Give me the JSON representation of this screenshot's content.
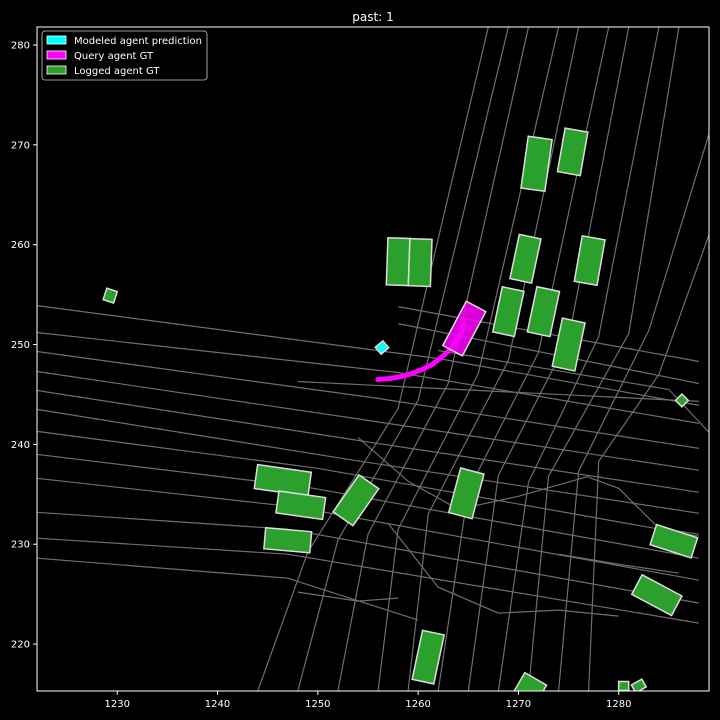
{
  "chart_data": {
    "type": "scatter",
    "title": "past: 1",
    "xlabel": "",
    "ylabel": "",
    "xlim": [
      1222,
      1289
    ],
    "ylim": [
      215.3,
      281.8
    ],
    "xticks": [
      1230,
      1240,
      1250,
      1260,
      1270,
      1280
    ],
    "yticks": [
      220,
      230,
      240,
      250,
      260,
      270,
      280
    ],
    "grid": false,
    "background": "#000000",
    "road_color": "#6e6e6e",
    "legend_position": "top-left",
    "legend": [
      {
        "label": "Modeled agent prediction",
        "color": "#00ffff"
      },
      {
        "label": "Query agent GT",
        "color": "#ff00ff"
      },
      {
        "label": "Logged agent GT",
        "color": "#2ca02c"
      }
    ],
    "road_lines": [
      [
        [
          1222,
          253.9
        ],
        [
          1262,
          248.6
        ],
        [
          1288,
          243.9
        ]
      ],
      [
        [
          1222,
          251.2
        ],
        [
          1258,
          247.2
        ],
        [
          1288,
          242.1
        ]
      ],
      [
        [
          1222,
          249.3
        ],
        [
          1256,
          244.6
        ],
        [
          1288,
          239.6
        ]
      ],
      [
        [
          1222,
          247.3
        ],
        [
          1255,
          242.4
        ],
        [
          1288,
          237.4
        ]
      ],
      [
        [
          1222,
          245.4
        ],
        [
          1254,
          240.4
        ],
        [
          1288,
          235.2
        ]
      ],
      [
        [
          1222,
          243.5
        ],
        [
          1253,
          238.5
        ],
        [
          1288,
          233.1
        ]
      ],
      [
        [
          1222,
          241.3
        ],
        [
          1250,
          237.6
        ],
        [
          1288,
          230.8
        ]
      ],
      [
        [
          1222,
          239.0
        ],
        [
          1249,
          235.7
        ],
        [
          1288,
          228.6
        ]
      ],
      [
        [
          1222,
          236.6
        ],
        [
          1248,
          233.7
        ],
        [
          1288,
          226.4
        ]
      ],
      [
        [
          1222,
          233.2
        ],
        [
          1247,
          231.5
        ],
        [
          1288,
          224.1
        ]
      ],
      [
        [
          1222,
          230.6
        ],
        [
          1247,
          229.0
        ],
        [
          1288,
          222.1
        ]
      ],
      [
        [
          1222,
          228.6
        ],
        [
          1247,
          226.6
        ],
        [
          1260,
          222.4
        ]
      ],
      [
        [
          1258,
          253.8
        ],
        [
          1288,
          248.3
        ]
      ],
      [
        [
          1258,
          252.1
        ],
        [
          1288,
          246.1
        ]
      ],
      [
        [
          1262,
          249.4
        ],
        [
          1285,
          245.5
        ],
        [
          1289,
          241.2
        ]
      ],
      [
        [
          1248,
          246.3
        ],
        [
          1288,
          244.3
        ]
      ],
      [
        [
          1267,
          281.8
        ],
        [
          1258,
          243.6
        ],
        [
          1249,
          229.2
        ],
        [
          1244,
          215.3
        ]
      ],
      [
        [
          1269,
          281.8
        ],
        [
          1260,
          244.4
        ],
        [
          1252,
          230.4
        ],
        [
          1248,
          215.3
        ]
      ],
      [
        [
          1271,
          281.8
        ],
        [
          1263,
          246.1
        ],
        [
          1255,
          231.0
        ],
        [
          1252,
          215.3
        ]
      ],
      [
        [
          1274,
          281.8
        ],
        [
          1266,
          247.1
        ],
        [
          1258,
          231.5
        ],
        [
          1256,
          215.3
        ]
      ],
      [
        [
          1276,
          281.8
        ],
        [
          1269,
          248.4
        ],
        [
          1261,
          233.0
        ],
        [
          1259,
          215.3
        ]
      ],
      [
        [
          1279,
          281.8
        ],
        [
          1272,
          249.2
        ],
        [
          1265,
          235.4
        ],
        [
          1262,
          215.3
        ]
      ],
      [
        [
          1281,
          281.8
        ],
        [
          1275,
          250.6
        ],
        [
          1268,
          236.9
        ],
        [
          1265,
          215.3
        ]
      ],
      [
        [
          1284,
          281.8
        ],
        [
          1278,
          250.8
        ],
        [
          1271,
          236.2
        ],
        [
          1268,
          215.3
        ]
      ],
      [
        [
          1286,
          281.8
        ],
        [
          1281,
          251.1
        ],
        [
          1273,
          236.8
        ],
        [
          1271,
          215.3
        ]
      ],
      [
        [
          1289,
          271.1
        ],
        [
          1283,
          251.4
        ],
        [
          1276,
          237.3
        ],
        [
          1274,
          215.3
        ]
      ],
      [
        [
          1289,
          261.0
        ],
        [
          1284,
          247.0
        ],
        [
          1278,
          238.3
        ],
        [
          1277,
          215.3
        ]
      ],
      [
        [
          1254,
          240.7
        ],
        [
          1259,
          236.3
        ],
        [
          1264,
          233.5
        ],
        [
          1270,
          234.8
        ],
        [
          1277,
          236.8
        ]
      ],
      [
        [
          1257,
          232.1
        ],
        [
          1262,
          225.7
        ],
        [
          1268,
          223.1
        ],
        [
          1274,
          223.4
        ],
        [
          1280,
          222.8
        ]
      ],
      [
        [
          1277,
          236.7
        ],
        [
          1280,
          235.6
        ],
        [
          1284,
          231.6
        ],
        [
          1288,
          231.0
        ]
      ],
      [
        [
          1248,
          225.2
        ],
        [
          1254,
          224.3
        ],
        [
          1258,
          224.6
        ]
      ],
      [
        [
          1274,
          229.0
        ],
        [
          1280,
          228.0
        ],
        [
          1286,
          227.1
        ]
      ]
    ],
    "logged_agents": [
      {
        "x": 1258.0,
        "y": 258.3,
        "length": 4.7,
        "width": 2.2,
        "heading": 88
      },
      {
        "x": 1260.2,
        "y": 258.2,
        "length": 4.7,
        "width": 2.2,
        "heading": 88
      },
      {
        "x": 1271.8,
        "y": 268.1,
        "length": 5.2,
        "width": 2.4,
        "heading": 82
      },
      {
        "x": 1275.4,
        "y": 269.3,
        "length": 4.4,
        "width": 2.3,
        "heading": 80
      },
      {
        "x": 1270.7,
        "y": 258.6,
        "length": 4.5,
        "width": 2.2,
        "heading": 78
      },
      {
        "x": 1277.1,
        "y": 258.4,
        "length": 4.6,
        "width": 2.3,
        "heading": 80
      },
      {
        "x": 1269.0,
        "y": 253.3,
        "length": 4.6,
        "width": 2.2,
        "heading": 78
      },
      {
        "x": 1272.5,
        "y": 253.3,
        "length": 4.6,
        "width": 2.3,
        "heading": 78
      },
      {
        "x": 1275.0,
        "y": 250.0,
        "length": 4.9,
        "width": 2.3,
        "heading": 78
      },
      {
        "x": 1229.3,
        "y": 254.9,
        "length": 1.2,
        "width": 1.1,
        "heading": 72
      },
      {
        "x": 1286.3,
        "y": 244.4,
        "length": 0.9,
        "width": 0.9,
        "heading": 45
      },
      {
        "x": 1246.5,
        "y": 236.4,
        "length": 5.4,
        "width": 2.4,
        "heading": -8
      },
      {
        "x": 1248.3,
        "y": 233.9,
        "length": 4.7,
        "width": 2.2,
        "heading": -8
      },
      {
        "x": 1247.0,
        "y": 230.4,
        "length": 4.6,
        "width": 2.1,
        "heading": -5
      },
      {
        "x": 1253.8,
        "y": 234.4,
        "length": 4.5,
        "width": 2.4,
        "heading": 55
      },
      {
        "x": 1264.8,
        "y": 235.1,
        "length": 4.6,
        "width": 2.4,
        "heading": 75
      },
      {
        "x": 1285.5,
        "y": 230.3,
        "length": 4.3,
        "width": 2.1,
        "heading": -18
      },
      {
        "x": 1283.8,
        "y": 224.9,
        "length": 4.5,
        "width": 2.2,
        "heading": -28
      },
      {
        "x": 1261.0,
        "y": 218.7,
        "length": 5.0,
        "width": 2.2,
        "heading": 78
      },
      {
        "x": 1271.2,
        "y": 215.6,
        "length": 2.5,
        "width": 2.1,
        "heading": -30
      },
      {
        "x": 1282.0,
        "y": 215.8,
        "length": 1.2,
        "width": 0.9,
        "heading": 30
      },
      {
        "x": 1280.5,
        "y": 215.8,
        "length": 1.0,
        "width": 0.9,
        "heading": 0
      }
    ],
    "query_agent": {
      "x": 1264.6,
      "y": 251.6,
      "length": 5.0,
      "width": 2.2,
      "heading": 62
    },
    "query_trajectory": [
      [
        1256.0,
        246.5
      ],
      [
        1257.2,
        246.6
      ],
      [
        1258.3,
        246.8
      ],
      [
        1259.4,
        247.1
      ],
      [
        1260.4,
        247.5
      ],
      [
        1261.4,
        248.0
      ],
      [
        1262.3,
        248.7
      ],
      [
        1263.1,
        249.4
      ],
      [
        1263.8,
        250.3
      ],
      [
        1264.3,
        251.2
      ],
      [
        1264.6,
        252.0
      ]
    ],
    "modeled_agent": {
      "x": 1256.4,
      "y": 249.7,
      "length": 1.0,
      "width": 0.9,
      "heading": 40
    }
  }
}
